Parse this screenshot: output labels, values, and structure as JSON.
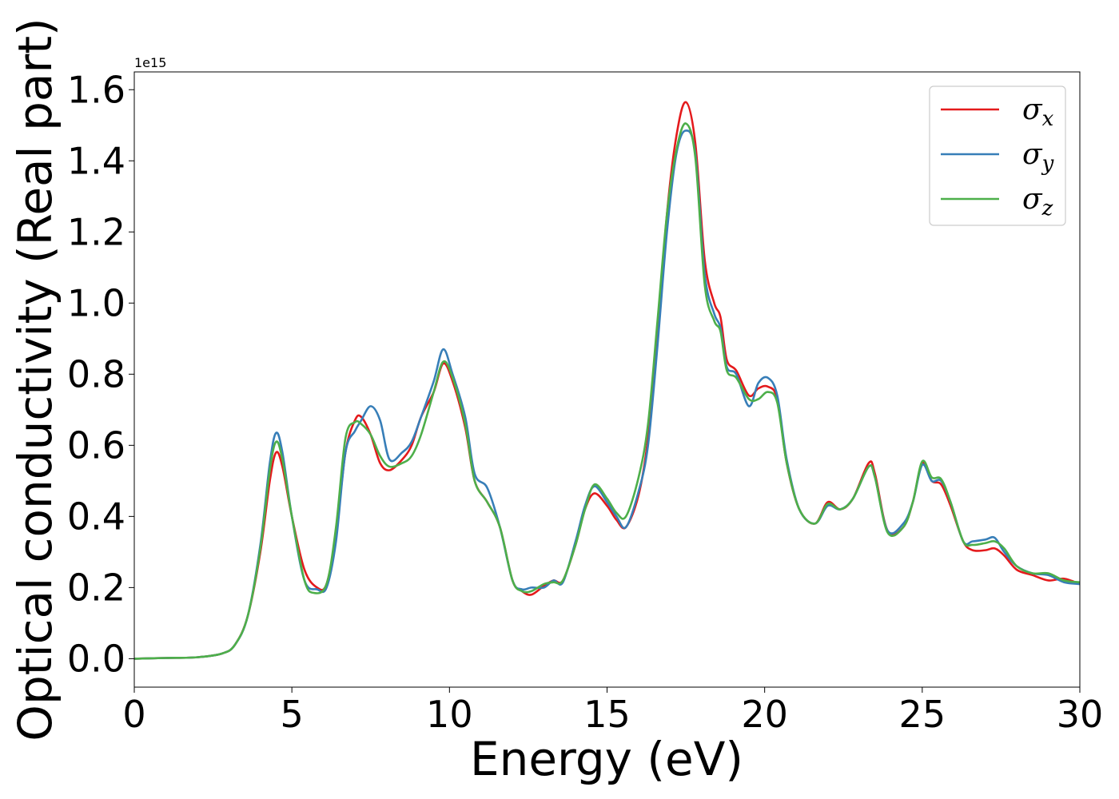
{
  "chart_data": {
    "type": "line",
    "title": "",
    "xlabel": "Energy (eV)",
    "ylabel": "Optical conductivity (Real part)",
    "y_offset_label": "1e15",
    "y_scale_factor": 1000000000000000.0,
    "xlim": [
      0,
      30
    ],
    "ylim": [
      -0.08,
      1.65
    ],
    "xticks": [
      0,
      5,
      10,
      15,
      20,
      25,
      30
    ],
    "xtick_labels": [
      "0",
      "5",
      "10",
      "15",
      "20",
      "25",
      "30"
    ],
    "yticks": [
      0.0,
      0.2,
      0.4,
      0.6,
      0.8,
      1.0,
      1.2,
      1.4,
      1.6
    ],
    "ytick_labels": [
      "0.0",
      "0.2",
      "0.4",
      "0.6",
      "0.8",
      "1.0",
      "1.2",
      "1.4",
      "1.6"
    ],
    "grid": false,
    "legend_position": "top-right",
    "series": [
      {
        "name": "σx",
        "symbol": "σ",
        "subscript": "x",
        "color": "#e41a1c",
        "points": [
          [
            0,
            0
          ],
          [
            1,
            0.002
          ],
          [
            2,
            0.004
          ],
          [
            2.8,
            0.015
          ],
          [
            3.2,
            0.04
          ],
          [
            3.6,
            0.12
          ],
          [
            4,
            0.3
          ],
          [
            4.3,
            0.5
          ],
          [
            4.5,
            0.58
          ],
          [
            4.7,
            0.54
          ],
          [
            5,
            0.4
          ],
          [
            5.4,
            0.25
          ],
          [
            5.8,
            0.2
          ],
          [
            6.1,
            0.21
          ],
          [
            6.4,
            0.35
          ],
          [
            6.7,
            0.58
          ],
          [
            7,
            0.67
          ],
          [
            7.2,
            0.68
          ],
          [
            7.5,
            0.63
          ],
          [
            7.8,
            0.55
          ],
          [
            8.1,
            0.53
          ],
          [
            8.5,
            0.56
          ],
          [
            8.8,
            0.6
          ],
          [
            9.1,
            0.68
          ],
          [
            9.5,
            0.75
          ],
          [
            9.8,
            0.83
          ],
          [
            10.1,
            0.78
          ],
          [
            10.5,
            0.65
          ],
          [
            10.8,
            0.5
          ],
          [
            11.2,
            0.44
          ],
          [
            11.6,
            0.37
          ],
          [
            12,
            0.22
          ],
          [
            12.3,
            0.19
          ],
          [
            12.6,
            0.18
          ],
          [
            13,
            0.205
          ],
          [
            13.3,
            0.22
          ],
          [
            13.6,
            0.22
          ],
          [
            14,
            0.32
          ],
          [
            14.3,
            0.42
          ],
          [
            14.6,
            0.465
          ],
          [
            15,
            0.43
          ],
          [
            15.3,
            0.39
          ],
          [
            15.6,
            0.37
          ],
          [
            16,
            0.46
          ],
          [
            16.3,
            0.62
          ],
          [
            16.6,
            0.9
          ],
          [
            16.9,
            1.25
          ],
          [
            17.2,
            1.47
          ],
          [
            17.5,
            1.565
          ],
          [
            17.8,
            1.45
          ],
          [
            18.1,
            1.12
          ],
          [
            18.4,
            1.0
          ],
          [
            18.6,
            0.96
          ],
          [
            18.8,
            0.84
          ],
          [
            19.1,
            0.81
          ],
          [
            19.5,
            0.74
          ],
          [
            19.8,
            0.76
          ],
          [
            20.1,
            0.765
          ],
          [
            20.4,
            0.73
          ],
          [
            20.7,
            0.55
          ],
          [
            21.1,
            0.42
          ],
          [
            21.6,
            0.38
          ],
          [
            22,
            0.44
          ],
          [
            22.4,
            0.42
          ],
          [
            22.8,
            0.45
          ],
          [
            23.3,
            0.55
          ],
          [
            23.5,
            0.52
          ],
          [
            23.9,
            0.36
          ],
          [
            24.4,
            0.37
          ],
          [
            24.7,
            0.44
          ],
          [
            25,
            0.55
          ],
          [
            25.3,
            0.5
          ],
          [
            25.6,
            0.49
          ],
          [
            25.9,
            0.43
          ],
          [
            26.3,
            0.33
          ],
          [
            26.6,
            0.305
          ],
          [
            27,
            0.305
          ],
          [
            27.3,
            0.31
          ],
          [
            27.6,
            0.29
          ],
          [
            28,
            0.25
          ],
          [
            28.5,
            0.235
          ],
          [
            29,
            0.22
          ],
          [
            29.5,
            0.225
          ],
          [
            30,
            0.21
          ]
        ]
      },
      {
        "name": "σy",
        "symbol": "σ",
        "subscript": "y",
        "color": "#377eb8",
        "points": [
          [
            0,
            0
          ],
          [
            1,
            0.002
          ],
          [
            2,
            0.004
          ],
          [
            2.8,
            0.015
          ],
          [
            3.2,
            0.04
          ],
          [
            3.6,
            0.12
          ],
          [
            4,
            0.32
          ],
          [
            4.3,
            0.55
          ],
          [
            4.5,
            0.635
          ],
          [
            4.7,
            0.58
          ],
          [
            5,
            0.4
          ],
          [
            5.4,
            0.22
          ],
          [
            5.8,
            0.195
          ],
          [
            6.1,
            0.2
          ],
          [
            6.4,
            0.33
          ],
          [
            6.7,
            0.58
          ],
          [
            7,
            0.64
          ],
          [
            7.2,
            0.67
          ],
          [
            7.5,
            0.71
          ],
          [
            7.8,
            0.67
          ],
          [
            8.1,
            0.56
          ],
          [
            8.5,
            0.58
          ],
          [
            8.8,
            0.61
          ],
          [
            9.1,
            0.68
          ],
          [
            9.5,
            0.78
          ],
          [
            9.8,
            0.87
          ],
          [
            10.1,
            0.8
          ],
          [
            10.5,
            0.68
          ],
          [
            10.8,
            0.52
          ],
          [
            11.2,
            0.48
          ],
          [
            11.6,
            0.37
          ],
          [
            12,
            0.22
          ],
          [
            12.3,
            0.195
          ],
          [
            12.6,
            0.2
          ],
          [
            13,
            0.2
          ],
          [
            13.3,
            0.22
          ],
          [
            13.6,
            0.215
          ],
          [
            14,
            0.33
          ],
          [
            14.3,
            0.43
          ],
          [
            14.6,
            0.485
          ],
          [
            15,
            0.44
          ],
          [
            15.3,
            0.4
          ],
          [
            15.6,
            0.37
          ],
          [
            16,
            0.47
          ],
          [
            16.3,
            0.6
          ],
          [
            16.6,
            0.88
          ],
          [
            16.9,
            1.2
          ],
          [
            17.2,
            1.42
          ],
          [
            17.5,
            1.485
          ],
          [
            17.8,
            1.42
          ],
          [
            18.1,
            1.08
          ],
          [
            18.4,
            0.97
          ],
          [
            18.6,
            0.93
          ],
          [
            18.8,
            0.82
          ],
          [
            19.1,
            0.8
          ],
          [
            19.5,
            0.71
          ],
          [
            19.8,
            0.775
          ],
          [
            20.1,
            0.79
          ],
          [
            20.4,
            0.74
          ],
          [
            20.7,
            0.56
          ],
          [
            21.1,
            0.42
          ],
          [
            21.6,
            0.38
          ],
          [
            22,
            0.43
          ],
          [
            22.4,
            0.42
          ],
          [
            22.8,
            0.45
          ],
          [
            23.3,
            0.54
          ],
          [
            23.5,
            0.51
          ],
          [
            23.9,
            0.36
          ],
          [
            24.4,
            0.38
          ],
          [
            24.7,
            0.44
          ],
          [
            25,
            0.545
          ],
          [
            25.3,
            0.5
          ],
          [
            25.6,
            0.5
          ],
          [
            25.9,
            0.44
          ],
          [
            26.3,
            0.33
          ],
          [
            26.6,
            0.33
          ],
          [
            27,
            0.335
          ],
          [
            27.3,
            0.34
          ],
          [
            27.6,
            0.3
          ],
          [
            28,
            0.26
          ],
          [
            28.5,
            0.24
          ],
          [
            29,
            0.235
          ],
          [
            29.5,
            0.215
          ],
          [
            30,
            0.21
          ]
        ]
      },
      {
        "name": "σz",
        "symbol": "σ",
        "subscript": "z",
        "color": "#4daf4a",
        "points": [
          [
            0,
            0
          ],
          [
            1,
            0.002
          ],
          [
            2,
            0.004
          ],
          [
            2.8,
            0.015
          ],
          [
            3.2,
            0.04
          ],
          [
            3.6,
            0.12
          ],
          [
            4,
            0.31
          ],
          [
            4.3,
            0.53
          ],
          [
            4.5,
            0.61
          ],
          [
            4.7,
            0.56
          ],
          [
            5,
            0.4
          ],
          [
            5.4,
            0.22
          ],
          [
            5.7,
            0.185
          ],
          [
            6.1,
            0.21
          ],
          [
            6.4,
            0.37
          ],
          [
            6.7,
            0.62
          ],
          [
            7,
            0.665
          ],
          [
            7.2,
            0.66
          ],
          [
            7.5,
            0.63
          ],
          [
            7.8,
            0.57
          ],
          [
            8.1,
            0.54
          ],
          [
            8.5,
            0.55
          ],
          [
            8.8,
            0.57
          ],
          [
            9.1,
            0.63
          ],
          [
            9.5,
            0.75
          ],
          [
            9.8,
            0.835
          ],
          [
            10.1,
            0.79
          ],
          [
            10.5,
            0.66
          ],
          [
            10.8,
            0.5
          ],
          [
            11.2,
            0.44
          ],
          [
            11.6,
            0.37
          ],
          [
            12,
            0.22
          ],
          [
            12.3,
            0.19
          ],
          [
            12.6,
            0.19
          ],
          [
            13,
            0.21
          ],
          [
            13.3,
            0.215
          ],
          [
            13.6,
            0.22
          ],
          [
            14,
            0.32
          ],
          [
            14.3,
            0.42
          ],
          [
            14.6,
            0.49
          ],
          [
            15,
            0.45
          ],
          [
            15.3,
            0.41
          ],
          [
            15.6,
            0.4
          ],
          [
            16,
            0.51
          ],
          [
            16.3,
            0.66
          ],
          [
            16.6,
            0.95
          ],
          [
            16.9,
            1.25
          ],
          [
            17.2,
            1.43
          ],
          [
            17.5,
            1.505
          ],
          [
            17.8,
            1.41
          ],
          [
            18.1,
            1.05
          ],
          [
            18.4,
            0.95
          ],
          [
            18.6,
            0.92
          ],
          [
            18.8,
            0.81
          ],
          [
            19.1,
            0.79
          ],
          [
            19.5,
            0.73
          ],
          [
            19.8,
            0.73
          ],
          [
            20.1,
            0.75
          ],
          [
            20.4,
            0.72
          ],
          [
            20.7,
            0.55
          ],
          [
            21.1,
            0.42
          ],
          [
            21.6,
            0.38
          ],
          [
            22,
            0.435
          ],
          [
            22.4,
            0.42
          ],
          [
            22.8,
            0.45
          ],
          [
            23.3,
            0.54
          ],
          [
            23.5,
            0.51
          ],
          [
            23.9,
            0.355
          ],
          [
            24.4,
            0.37
          ],
          [
            24.7,
            0.44
          ],
          [
            25,
            0.555
          ],
          [
            25.3,
            0.51
          ],
          [
            25.6,
            0.505
          ],
          [
            25.9,
            0.44
          ],
          [
            26.3,
            0.33
          ],
          [
            26.6,
            0.32
          ],
          [
            27,
            0.325
          ],
          [
            27.3,
            0.33
          ],
          [
            27.6,
            0.31
          ],
          [
            28,
            0.26
          ],
          [
            28.5,
            0.24
          ],
          [
            29,
            0.24
          ],
          [
            29.5,
            0.22
          ],
          [
            30,
            0.215
          ]
        ]
      }
    ]
  }
}
